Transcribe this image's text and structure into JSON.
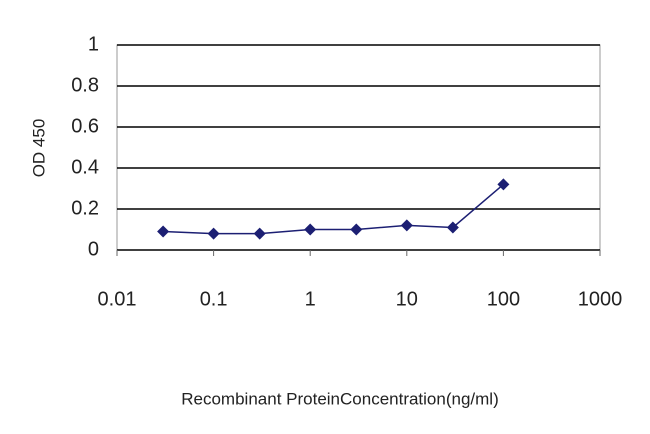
{
  "chart_data": {
    "type": "line",
    "x_label": "Recombinant ProteinConcentration(ng/ml)",
    "y_label": "OD 450",
    "x": [
      0.03,
      0.1,
      0.3,
      1,
      3,
      10,
      30,
      100
    ],
    "series": [
      {
        "color": "#1c1f73",
        "values": [
          0.09,
          0.08,
          0.08,
          0.1,
          0.1,
          0.12,
          0.11,
          0.32
        ]
      }
    ],
    "xscale": "log",
    "xlim": [
      0.01,
      1000
    ],
    "xticks": [
      0.01,
      0.1,
      1,
      10,
      100,
      1000
    ],
    "ylim": [
      0,
      1
    ],
    "yticks": [
      0,
      0.2,
      0.4,
      0.6,
      0.8,
      1
    ],
    "grid": true
  }
}
